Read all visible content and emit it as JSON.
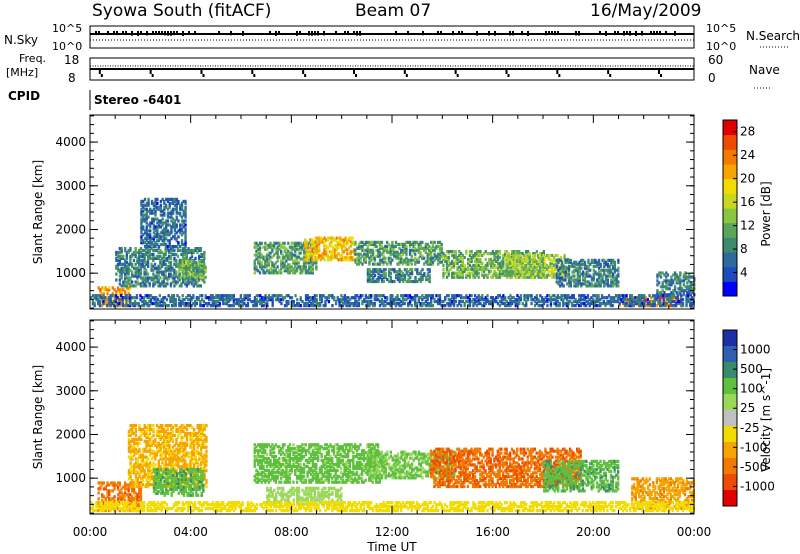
{
  "header": {
    "station": "Syowa South (fitACF)",
    "beam": "Beam 07",
    "date": "16/May/2009"
  },
  "top_panels": {
    "nsky_label": "N.Sky",
    "nsky_ticks": [
      "10^5",
      "10^0"
    ],
    "nsearch_label": "N.Search",
    "nsearch_ticks": [
      "10^5",
      "10^0"
    ],
    "freq_label_1": "Freq.",
    "freq_label_2": "[MHz]",
    "freq_ticks": [
      "18",
      "8"
    ],
    "nave_label": "Nave",
    "nave_ticks": [
      "60",
      "0"
    ],
    "cpid_label": "CPID",
    "cpid_value": "Stereo -6401"
  },
  "chart_data": [
    {
      "type": "heatmap",
      "title": "",
      "xlabel": "",
      "ylabel": "Slant Range [km]",
      "x_ticks": [
        "00:00",
        "04:00",
        "08:00",
        "12:00",
        "16:00",
        "20:00",
        "00:00"
      ],
      "x_range_hours": [
        0,
        24
      ],
      "y_ticks": [
        "1000",
        "2000",
        "3000",
        "4000"
      ],
      "ylim": [
        180,
        4620
      ],
      "colorbar": {
        "label": "Power [dB]",
        "ticks": [
          "4",
          "8",
          "12",
          "16",
          "20",
          "24",
          "28"
        ],
        "range": [
          0,
          30
        ],
        "colors": [
          "#0000ff",
          "#1f4bbf",
          "#2e6b9c",
          "#3c8a6e",
          "#5aa55a",
          "#8bc63e",
          "#c8d81e",
          "#f2dc00",
          "#f5a400",
          "#f27a00",
          "#ee4a00",
          "#e00000"
        ]
      },
      "regions": [
        {
          "t": [
            0.3,
            1.6
          ],
          "r": [
            250,
            700
          ],
          "value": 22
        },
        {
          "t": [
            1.0,
            4.5
          ],
          "r": [
            700,
            1600
          ],
          "value": 8
        },
        {
          "t": [
            2.0,
            3.8
          ],
          "r": [
            1600,
            2700
          ],
          "value": 6
        },
        {
          "t": [
            3.5,
            4.6
          ],
          "r": [
            900,
            1300
          ],
          "value": 12
        },
        {
          "t": [
            6.5,
            9.0
          ],
          "r": [
            1000,
            1700
          ],
          "value": 10
        },
        {
          "t": [
            8.5,
            10.5
          ],
          "r": [
            1300,
            1800
          ],
          "value": 20
        },
        {
          "t": [
            10.5,
            14.0
          ],
          "r": [
            1200,
            1700
          ],
          "value": 10
        },
        {
          "t": [
            11.0,
            13.5
          ],
          "r": [
            800,
            1100
          ],
          "value": 8
        },
        {
          "t": [
            14.0,
            18.0
          ],
          "r": [
            900,
            1500
          ],
          "value": 12
        },
        {
          "t": [
            16.5,
            19.0
          ],
          "r": [
            900,
            1400
          ],
          "value": 14
        },
        {
          "t": [
            18.5,
            21.0
          ],
          "r": [
            700,
            1300
          ],
          "value": 8
        },
        {
          "t": [
            21.0,
            23.5
          ],
          "r": [
            250,
            450
          ],
          "value": 24
        },
        {
          "t": [
            22.5,
            24.0
          ],
          "r": [
            500,
            1000
          ],
          "value": 8
        },
        {
          "t": [
            0.0,
            24.0
          ],
          "r": [
            250,
            500
          ],
          "value": 6
        }
      ]
    },
    {
      "type": "heatmap",
      "title": "",
      "xlabel": "Time UT",
      "ylabel": "Slant Range [km]",
      "x_ticks": [
        "00:00",
        "04:00",
        "08:00",
        "12:00",
        "16:00",
        "20:00",
        "00:00"
      ],
      "x_range_hours": [
        0,
        24
      ],
      "y_ticks": [
        "1000",
        "2000",
        "3000",
        "4000"
      ],
      "ylim": [
        180,
        4620
      ],
      "colorbar": {
        "label": "Velocity [m s^-1]",
        "ticks": [
          "1000",
          "500",
          "100",
          "25",
          "-25",
          "-100",
          "-500",
          "-1000"
        ],
        "colors": [
          "#1d2fa6",
          "#2f5fae",
          "#3a8a6e",
          "#5fbf3e",
          "#9ad85a",
          "#c0c0c0",
          "#f2dc00",
          "#f5a400",
          "#f27a00",
          "#ee4a00",
          "#e00000"
        ]
      },
      "regions": [
        {
          "t": [
            0.3,
            2.0
          ],
          "r": [
            250,
            900
          ],
          "value": -400
        },
        {
          "t": [
            1.5,
            4.6
          ],
          "r": [
            800,
            2200
          ],
          "value": -120
        },
        {
          "t": [
            2.5,
            4.5
          ],
          "r": [
            600,
            1200
          ],
          "value": 200
        },
        {
          "t": [
            6.5,
            11.5
          ],
          "r": [
            900,
            1800
          ],
          "value": 150
        },
        {
          "t": [
            7.0,
            10.0
          ],
          "r": [
            400,
            800
          ],
          "value": 40
        },
        {
          "t": [
            11.0,
            14.5
          ],
          "r": [
            1000,
            1600
          ],
          "value": 120
        },
        {
          "t": [
            13.5,
            19.5
          ],
          "r": [
            800,
            1700
          ],
          "value": -450
        },
        {
          "t": [
            18.0,
            21.0
          ],
          "r": [
            700,
            1400
          ],
          "value": 200
        },
        {
          "t": [
            21.5,
            24.0
          ],
          "r": [
            300,
            1000
          ],
          "value": -200
        },
        {
          "t": [
            0.0,
            24.0
          ],
          "r": [
            250,
            450
          ],
          "value": -60
        }
      ]
    }
  ]
}
